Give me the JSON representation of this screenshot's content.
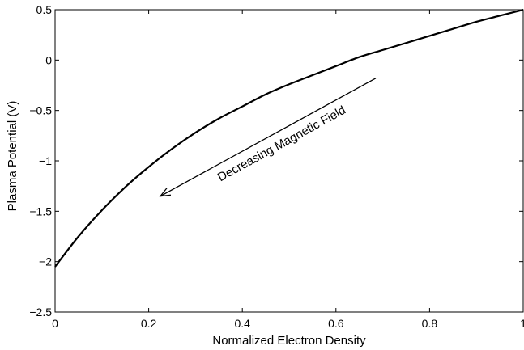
{
  "chart_data": {
    "type": "line",
    "xlabel": "Normalized Electron Density",
    "ylabel": "Plasma Potential (V)",
    "xlim": [
      0,
      1
    ],
    "ylim": [
      -2.5,
      0.5
    ],
    "grid": false,
    "legend": "none",
    "x_ticks": [
      0,
      0.2,
      0.4,
      0.6,
      0.8,
      1
    ],
    "x_tick_labels": [
      "0",
      "0.2",
      "0.4",
      "0.6",
      "0.8",
      "1"
    ],
    "y_ticks": [
      -2.5,
      -2,
      -1.5,
      -1,
      -0.5,
      0,
      0.5
    ],
    "y_tick_labels": [
      "−2.5",
      "−2",
      "−1.5",
      "−1",
      "−0.5",
      "0",
      "0.5"
    ],
    "series": [
      {
        "color": "#000000",
        "x": [
          0,
          0.05,
          0.1,
          0.15,
          0.2,
          0.25,
          0.3,
          0.35,
          0.4,
          0.45,
          0.5,
          0.55,
          0.6,
          0.65,
          0.7,
          0.75,
          0.8,
          0.85,
          0.9,
          0.95,
          1.0
        ],
        "y": [
          -2.05,
          -1.75,
          -1.49,
          -1.26,
          -1.06,
          -0.88,
          -0.72,
          -0.58,
          -0.46,
          -0.34,
          -0.24,
          -0.15,
          -0.06,
          0.03,
          0.1,
          0.17,
          0.24,
          0.31,
          0.38,
          0.44,
          0.5
        ]
      }
    ],
    "annotations": [
      {
        "text": "Decreasing Magnetic Field",
        "arrow_from": [
          0.685,
          -0.18
        ],
        "arrow_to": [
          0.225,
          -1.35
        ]
      }
    ]
  }
}
